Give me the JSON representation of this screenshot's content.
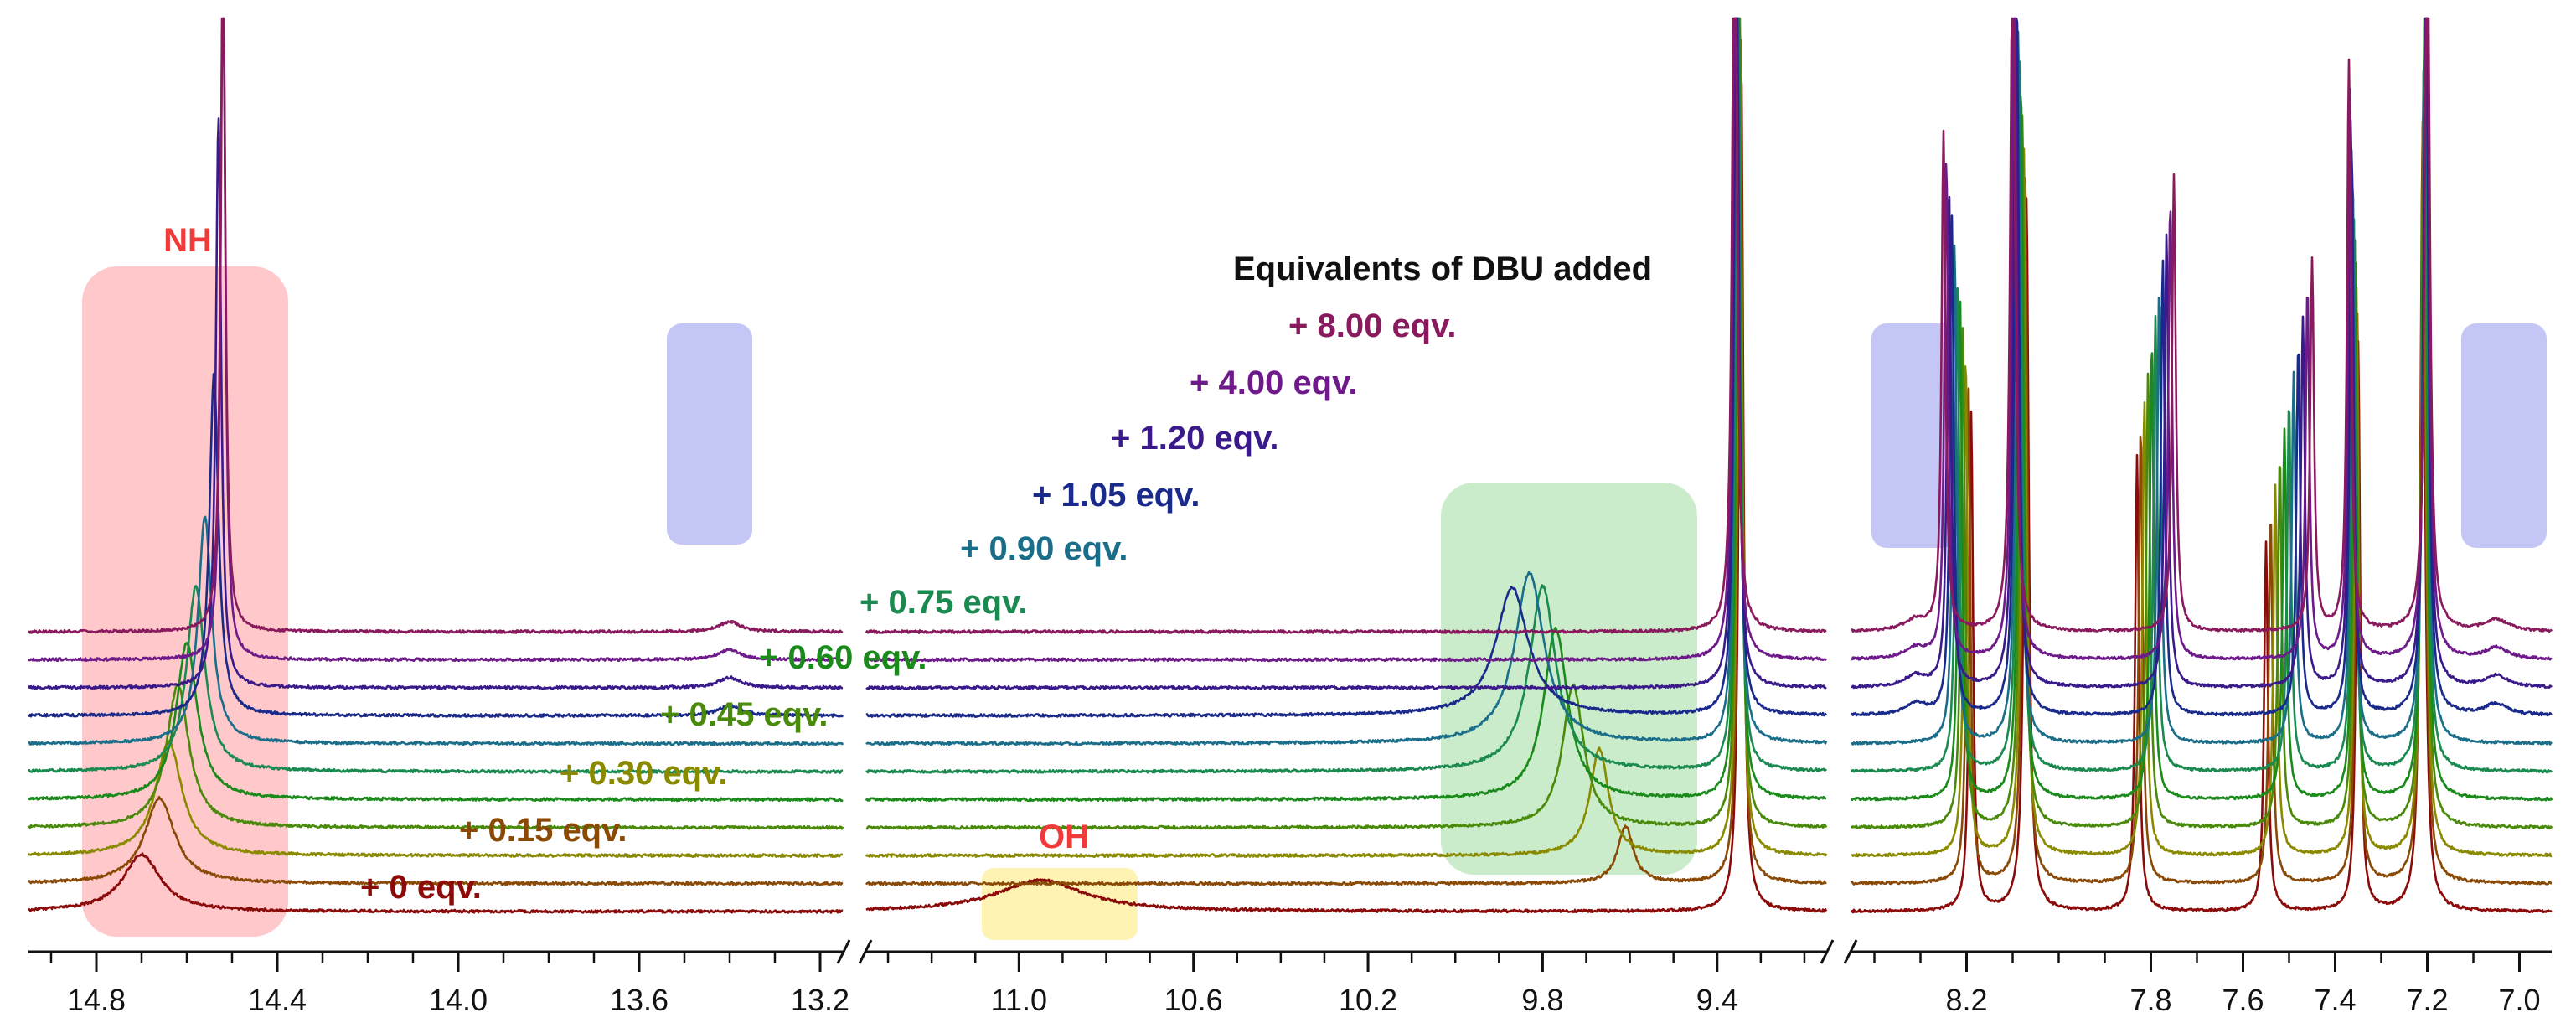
{
  "chart_data": {
    "type": "line",
    "title": "Equivalents of DBU added",
    "xlabel": "",
    "ylabel": "",
    "x_axis_reversed": true,
    "axis_breaks": [
      [
        13.2,
        11.35
      ],
      [
        9.15,
        8.45
      ]
    ],
    "x_segments": [
      {
        "range": [
          14.95,
          13.15
        ],
        "ticks": [
          14.8,
          14.4,
          14.0,
          13.6,
          13.2
        ],
        "tick_labels": [
          "14.8",
          "14.4",
          "14.0",
          "13.6",
          "13.2"
        ]
      },
      {
        "range": [
          11.35,
          9.15
        ],
        "ticks": [
          11.0,
          10.6,
          10.2,
          9.8,
          9.4
        ],
        "tick_labels": [
          "11.0",
          "10.6",
          "10.2",
          "9.8",
          "9.4"
        ]
      },
      {
        "range": [
          8.45,
          6.93
        ],
        "ticks": [
          8.2,
          7.8,
          7.6,
          7.4,
          7.2,
          7.0
        ],
        "tick_labels": [
          "8.2",
          "7.8",
          "7.6",
          "7.4",
          "7.2",
          "7.0"
        ]
      }
    ],
    "series": [
      {
        "name": "+ 0 eqv.",
        "label": "+ 0 eqv.",
        "color": "#8b0a0a",
        "nh_shift": 14.7,
        "nh_height": 0.4,
        "nh_width": 0.05,
        "oh_shift": 10.95,
        "oh_height": 0.22,
        "shift_96": null,
        "shift_96_height": 0,
        "signal_813": false
      },
      {
        "name": "+ 0.15 eqv.",
        "label": "+ 0.15 eqv.",
        "color": "#8a4a06",
        "nh_shift": 14.66,
        "nh_height": 0.6,
        "nh_width": 0.04,
        "oh_shift": null,
        "oh_height": 0,
        "shift_96": 9.61,
        "shift_96_height": 0.4,
        "signal_813": false
      },
      {
        "name": "+ 0.30 eqv.",
        "label": "+ 0.30 eqv.",
        "color": "#8a8a00",
        "nh_shift": 14.64,
        "nh_height": 0.8,
        "nh_width": 0.035,
        "oh_shift": null,
        "oh_height": 0,
        "shift_96": 9.67,
        "shift_96_height": 0.75,
        "signal_813": false
      },
      {
        "name": "+ 0.45 eqv.",
        "label": "+ 0.45 eqv.",
        "color": "#4a8a0a",
        "nh_shift": 14.62,
        "nh_height": 1.0,
        "nh_width": 0.03,
        "oh_shift": null,
        "oh_height": 0,
        "shift_96": 9.73,
        "shift_96_height": 1.0,
        "signal_813": false
      },
      {
        "name": "+ 0.60 eqv.",
        "label": "+ 0.60 eqv.",
        "color": "#1a8a1a",
        "nh_shift": 14.6,
        "nh_height": 1.1,
        "nh_width": 0.028,
        "oh_shift": null,
        "oh_height": 0,
        "shift_96": 9.77,
        "shift_96_height": 1.2,
        "signal_813": false
      },
      {
        "name": "+ 0.75 eqv.",
        "label": "+ 0.75 eqv.",
        "color": "#1a8a50",
        "nh_shift": 14.58,
        "nh_height": 1.3,
        "nh_width": 0.024,
        "oh_shift": null,
        "oh_height": 0,
        "shift_96": 9.8,
        "shift_96_height": 1.3,
        "signal_813": false
      },
      {
        "name": "+ 0.90 eqv.",
        "label": "+ 0.90 eqv.",
        "color": "#1a6e8a",
        "nh_shift": 14.56,
        "nh_height": 1.6,
        "nh_width": 0.018,
        "oh_shift": null,
        "oh_height": 0,
        "shift_96": 9.83,
        "shift_96_height": 1.2,
        "signal_813": false
      },
      {
        "name": "+ 1.05 eqv.",
        "label": "+ 1.05 eqv.",
        "color": "#1a2a8a",
        "nh_shift": 14.54,
        "nh_height": 2.4,
        "nh_width": 0.012,
        "oh_shift": null,
        "oh_height": 0,
        "shift_96": 9.87,
        "shift_96_height": 0.9,
        "signal_813": true
      },
      {
        "name": "+ 1.20 eqv.",
        "label": "+ 1.20 eqv.",
        "color": "#3a1a8a",
        "nh_shift": 14.53,
        "nh_height": 4.0,
        "nh_width": 0.007,
        "oh_shift": null,
        "oh_height": 0,
        "shift_96": null,
        "shift_96_height": 0,
        "signal_813": true
      },
      {
        "name": "+ 4.00 eqv.",
        "label": "+ 4.00 eqv.",
        "color": "#6e1a8a",
        "nh_shift": 14.52,
        "nh_height": 5.0,
        "nh_width": 0.006,
        "oh_shift": null,
        "oh_height": 0,
        "shift_96": null,
        "shift_96_height": 0,
        "signal_813": true
      },
      {
        "name": "+ 8.00 eqv.",
        "label": "+ 8.00 eqv.",
        "color": "#8a1a5e",
        "nh_shift": 14.52,
        "nh_height": 5.0,
        "nh_width": 0.006,
        "oh_shift": null,
        "oh_height": 0,
        "shift_96": null,
        "shift_96_height": 0,
        "signal_813": true
      }
    ],
    "aromatic_signals_ppm": [
      9.36,
      8.25,
      8.1,
      7.75,
      7.45,
      7.37,
      7.2
    ],
    "annotations": [
      {
        "text": "NH",
        "color": "#ff9aa0"
      },
      {
        "text": "OH",
        "color": "#fff0a0"
      },
      {
        "text": "",
        "color": "#9fdc9f"
      },
      {
        "text": "",
        "color": "#b0b4f2"
      }
    ]
  }
}
